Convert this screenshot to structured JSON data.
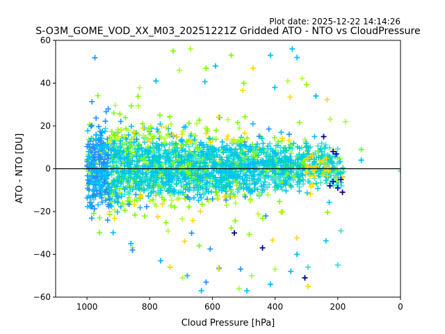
{
  "chart_data": {
    "type": "scatter",
    "plot_date": "Plot date: 2025-12-22 14:14:26",
    "title": "S-O3M_GOME_VOD_XX_M03_20251221Z Gridded ATO - NTO vs CloudPressure",
    "xlabel": "Cloud Pressure [hPa]",
    "ylabel": "ATO - NTO [DU]",
    "xlim": [
      1100,
      0
    ],
    "ylim": [
      -60,
      60
    ],
    "x_inverted": true,
    "xticks": [
      1000,
      800,
      600,
      400,
      200,
      0
    ],
    "yticks": [
      -60,
      -40,
      -20,
      0,
      20,
      40,
      60
    ],
    "xtick_labels": [
      "1000",
      "800",
      "600",
      "400",
      "200",
      "0"
    ],
    "ytick_labels": [
      "−60",
      "−40",
      "−20",
      "0",
      "20",
      "40",
      "60"
    ],
    "reference_line_y": 0,
    "marker": "plus",
    "grid": false,
    "colors": [
      "#00008b",
      "#0000cd",
      "#1e90ff",
      "#00bfff",
      "#00ced1",
      "#40e0d0",
      "#7cfc00",
      "#adff2f",
      "#ffd700"
    ],
    "cloud": {
      "x_range": [
        1000,
        180
      ],
      "core_y_range": [
        -20,
        22
      ],
      "outlier_y_range": [
        -57,
        56
      ]
    },
    "points": [
      {
        "x": 670,
        "y": 56,
        "c": 7
      },
      {
        "x": 725,
        "y": 55,
        "c": 6
      },
      {
        "x": 345,
        "y": 56,
        "c": 3
      },
      {
        "x": 330,
        "y": 52,
        "c": 3
      },
      {
        "x": 415,
        "y": 53,
        "c": 3
      },
      {
        "x": 540,
        "y": 53,
        "c": 6
      },
      {
        "x": 620,
        "y": 47,
        "c": 6
      },
      {
        "x": 590,
        "y": 48,
        "c": 3
      },
      {
        "x": 470,
        "y": 47,
        "c": 8
      },
      {
        "x": 705,
        "y": 46,
        "c": 7
      },
      {
        "x": 500,
        "y": 40,
        "c": 6
      },
      {
        "x": 780,
        "y": 41,
        "c": 3
      },
      {
        "x": 270,
        "y": 34,
        "c": 3
      },
      {
        "x": 245,
        "y": 15,
        "c": 0
      },
      {
        "x": 215,
        "y": 8,
        "c": 1
      },
      {
        "x": 205,
        "y": 7,
        "c": 1
      },
      {
        "x": 175,
        "y": 22,
        "c": 7
      },
      {
        "x": 125,
        "y": 9,
        "c": 6
      },
      {
        "x": 125,
        "y": 4,
        "c": 3
      },
      {
        "x": 0,
        "y": -1,
        "c": 5
      },
      {
        "x": 215,
        "y": -6,
        "c": 1
      },
      {
        "x": 225,
        "y": -8,
        "c": 0
      },
      {
        "x": 200,
        "y": -9,
        "c": 1
      },
      {
        "x": 190,
        "y": -5,
        "c": 1
      },
      {
        "x": 185,
        "y": -11,
        "c": 0
      },
      {
        "x": 190,
        "y": -29,
        "c": 5
      },
      {
        "x": 200,
        "y": -45,
        "c": 5
      },
      {
        "x": 295,
        "y": -46,
        "c": 5
      },
      {
        "x": 305,
        "y": -51,
        "c": 0
      },
      {
        "x": 295,
        "y": -55,
        "c": 8
      },
      {
        "x": 350,
        "y": -48,
        "c": 3
      },
      {
        "x": 400,
        "y": -47,
        "c": 7
      },
      {
        "x": 415,
        "y": -54,
        "c": 3
      },
      {
        "x": 475,
        "y": -50,
        "c": 7
      },
      {
        "x": 490,
        "y": -57,
        "c": 3
      },
      {
        "x": 515,
        "y": -56,
        "c": 7
      },
      {
        "x": 580,
        "y": -47,
        "c": 8
      },
      {
        "x": 620,
        "y": -53,
        "c": 2
      },
      {
        "x": 635,
        "y": -57,
        "c": 3
      },
      {
        "x": 680,
        "y": -50,
        "c": 3
      },
      {
        "x": 695,
        "y": -51,
        "c": 7
      },
      {
        "x": 735,
        "y": -46,
        "c": 8
      },
      {
        "x": 765,
        "y": -43,
        "c": 3
      },
      {
        "x": 860,
        "y": -35,
        "c": 3
      },
      {
        "x": 855,
        "y": -38,
        "c": 2
      },
      {
        "x": 530,
        "y": -30,
        "c": 0
      },
      {
        "x": 440,
        "y": -37,
        "c": 1
      },
      {
        "x": 330,
        "y": -40,
        "c": 3
      }
    ]
  }
}
